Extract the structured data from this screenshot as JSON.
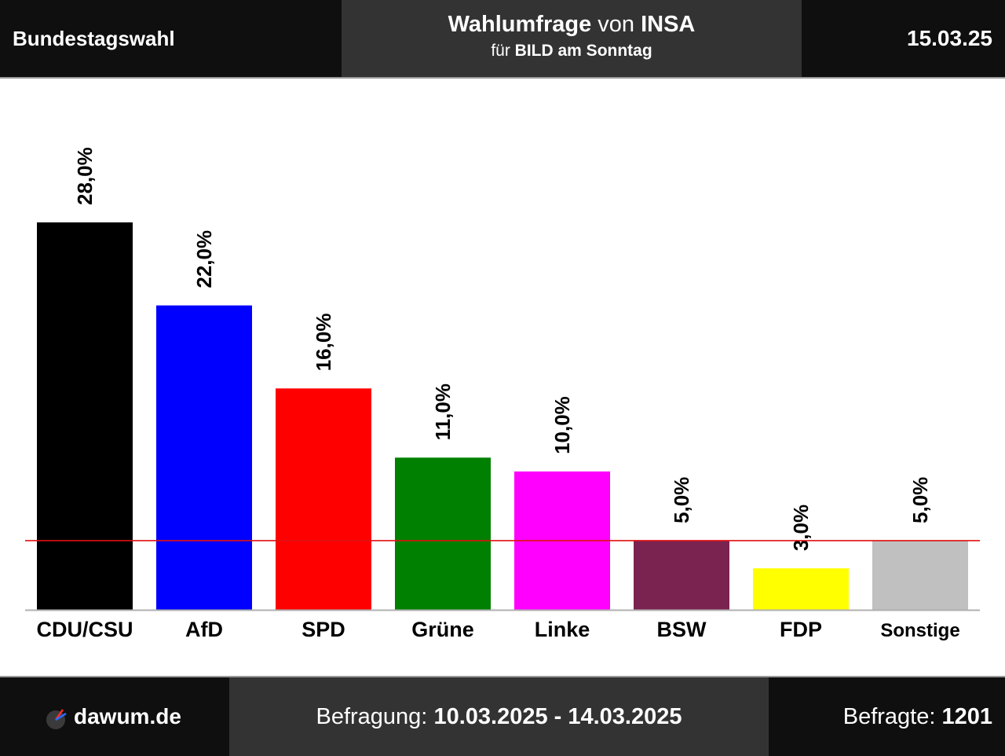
{
  "header": {
    "title": "Bundestagswahl",
    "center_line1_bold1": "Wahlumfrage",
    "center_line1_mid": "von",
    "center_line1_bold2": "INSA",
    "center_line2_pre": "für",
    "center_line2_bold": "BILD am Sonntag",
    "date": "15.03.25"
  },
  "footer": {
    "site": "dawum.de",
    "period_label": "Befragung:",
    "period_value": "10.03.2025 - 14.03.2025",
    "respondents_label": "Befragte:",
    "respondents_value": "1201"
  },
  "colors": {
    "threshold_line": "#e01010",
    "axis": "#b0b0b0"
  },
  "chart_data": {
    "type": "bar",
    "categories": [
      "CDU/CSU",
      "AfD",
      "SPD",
      "Grüne",
      "Linke",
      "BSW",
      "FDP",
      "Sonstige"
    ],
    "values": [
      28.0,
      22.0,
      16.0,
      11.0,
      10.0,
      5.0,
      3.0,
      5.0
    ],
    "value_labels": [
      "28,0%",
      "22,0%",
      "16,0%",
      "11,0%",
      "10,0%",
      "5,0%",
      "3,0%",
      "5,0%"
    ],
    "colors": [
      "#000000",
      "#0000ff",
      "#ff0000",
      "#008000",
      "#ff00ff",
      "#7a2350",
      "#ffff00",
      "#c0c0c0"
    ],
    "threshold": 5.0,
    "ylim": [
      0,
      28
    ]
  }
}
